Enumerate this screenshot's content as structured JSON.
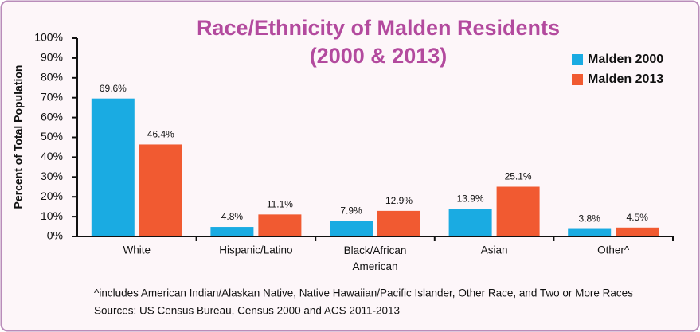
{
  "chart_data": {
    "type": "bar",
    "title": "Race/Ethnicity of Malden Residents",
    "subtitle": "(2000 & 2013)",
    "y_label": "Percent of Total Population",
    "categories": [
      "White",
      "Hispanic/Latino",
      "Black/African American",
      "Asian",
      "Other^"
    ],
    "series": [
      {
        "name": "Malden 2000",
        "color": "#1aabe2",
        "values": [
          69.6,
          4.8,
          7.9,
          13.9,
          3.8
        ],
        "value_labels": [
          "69.6%",
          "4.8%",
          "7.9%",
          "13.9%",
          "3.8%"
        ]
      },
      {
        "name": "Malden 2013",
        "color": "#f15a31",
        "values": [
          46.4,
          11.1,
          12.9,
          25.1,
          4.5
        ],
        "value_labels": [
          "46.4%",
          "11.1%",
          "12.9%",
          "25.1%",
          "4.5%"
        ]
      }
    ],
    "ylim": [
      0,
      100
    ],
    "yticks": [
      {
        "value": 0,
        "label": "0%"
      },
      {
        "value": 10,
        "label": "10%"
      },
      {
        "value": 20,
        "label": "20%"
      },
      {
        "value": 30,
        "label": "30%"
      },
      {
        "value": 40,
        "label": "40%"
      },
      {
        "value": 50,
        "label": "50%"
      },
      {
        "value": 60,
        "label": "60%"
      },
      {
        "value": 70,
        "label": "70%"
      },
      {
        "value": 80,
        "label": "80%"
      },
      {
        "value": 90,
        "label": "90%"
      },
      {
        "value": 100,
        "label": "100%"
      }
    ],
    "legend": "upper right",
    "notes": [
      "^includes American Indian/Alaskan Native, Native Hawaiian/Pacific Islander, Other Race, and Two or More Races",
      "Sources: US Census Bureau, Census 2000 and ACS 2011-2013"
    ]
  }
}
